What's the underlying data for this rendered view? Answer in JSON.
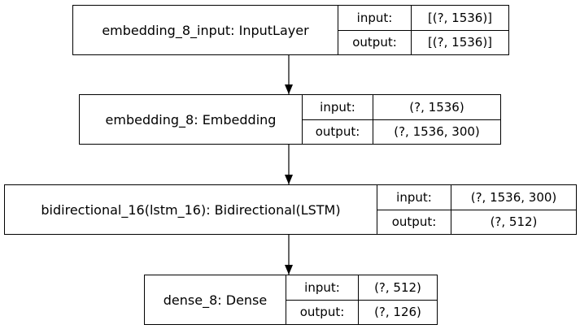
{
  "diagram": {
    "nodes": [
      {
        "name": "embedding_8_input: InputLayer",
        "input_label": "input:",
        "input_value": "[(?, 1536)]",
        "output_label": "output:",
        "output_value": "[(?, 1536)]"
      },
      {
        "name": "embedding_8: Embedding",
        "input_label": "input:",
        "input_value": "(?, 1536)",
        "output_label": "output:",
        "output_value": "(?, 1536, 300)"
      },
      {
        "name": "bidirectional_16(lstm_16): Bidirectional(LSTM)",
        "input_label": "input:",
        "input_value": "(?, 1536, 300)",
        "output_label": "output:",
        "output_value": "(?, 512)"
      },
      {
        "name": "dense_8: Dense",
        "input_label": "input:",
        "input_value": "(?, 512)",
        "output_label": "output:",
        "output_value": "(?, 126)"
      }
    ],
    "edges": [
      {
        "from": 0,
        "to": 1
      },
      {
        "from": 1,
        "to": 2
      },
      {
        "from": 2,
        "to": 3
      }
    ]
  }
}
